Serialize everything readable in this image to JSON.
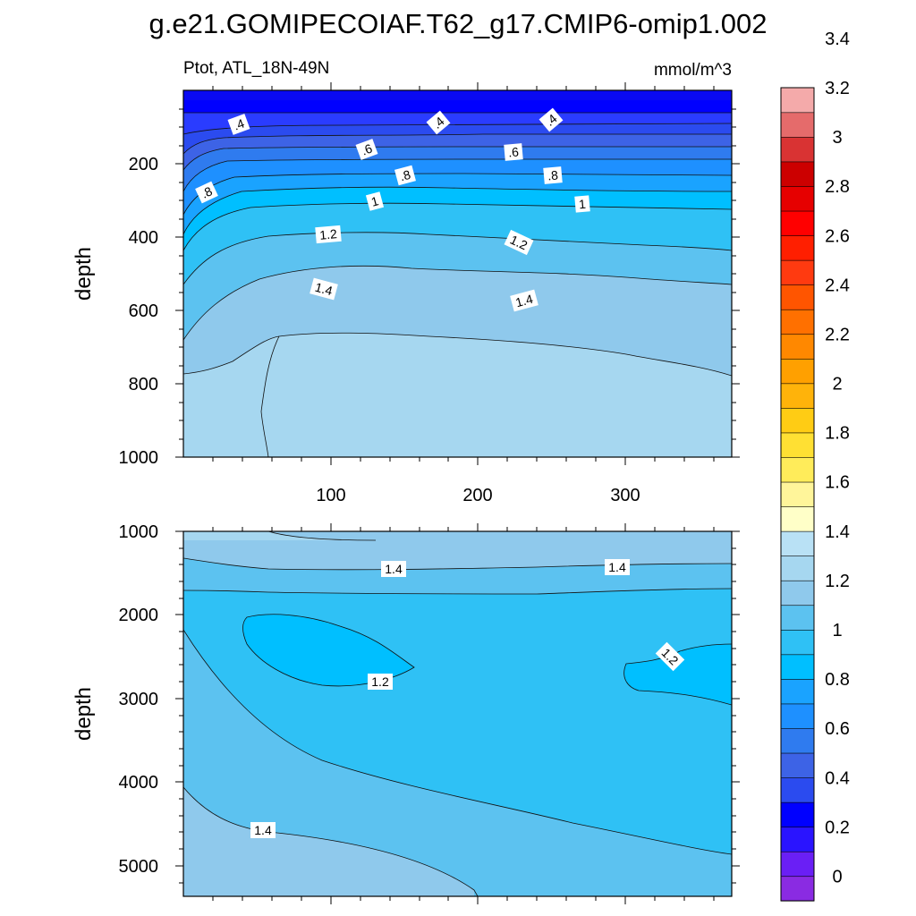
{
  "chart_data": [
    {
      "type": "heatmap",
      "title": "g.e21.GOMIPECOIAF.T62_g17.CMIP6-omip1.002",
      "left_label": "Ptot, ATL_18N-49N",
      "right_label": "mmol/m^3",
      "ylabel": "depth",
      "xlim": [
        0,
        372
      ],
      "ylim": [
        1000,
        0
      ],
      "x_ticks": [
        "100",
        "200",
        "300"
      ],
      "y_ticks": [
        "200",
        "400",
        "600",
        "800",
        "1000"
      ],
      "contour_labels": [
        ".4",
        ".4",
        ".4",
        ".6",
        ".6",
        ".8",
        ".8",
        ".8",
        "1",
        "1",
        "1.2",
        "1.2",
        "1.4",
        "1.4"
      ],
      "grid": false
    },
    {
      "type": "heatmap",
      "ylabel": "depth",
      "xlim": [
        0,
        372
      ],
      "ylim": [
        5400,
        1000
      ],
      "y_ticks": [
        "1000",
        "2000",
        "3000",
        "4000",
        "5000"
      ],
      "contour_labels": [
        "1.4",
        "1.4",
        "1.2",
        "1.2",
        "1.4"
      ],
      "grid": false
    }
  ],
  "colorbar": {
    "labels": [
      "0",
      "0.2",
      "0.4",
      "0.6",
      "0.8",
      "1",
      "1.2",
      "1.4",
      "1.6",
      "1.8",
      "2",
      "2.2",
      "2.4",
      "2.6",
      "2.8",
      "3",
      "3.2",
      "3.4"
    ],
    "colors": [
      "#8a2be2",
      "#6a1ff5",
      "#2a14ff",
      "#0000ff",
      "#2b4bef",
      "#3d63e6",
      "#2f7bef",
      "#1e90ff",
      "#1aa3ff",
      "#00bfff",
      "#2fc1f5",
      "#5cc2f0",
      "#8fc9ec",
      "#a6d7f0",
      "#b9e1f5",
      "#ffffc8",
      "#fff59a",
      "#ffec5a",
      "#ffe033",
      "#ffcc14",
      "#ffb30a",
      "#ffa000",
      "#ff8800",
      "#ff7000",
      "#ff5500",
      "#ff3a10",
      "#ff1f00",
      "#ff0000",
      "#e60000",
      "#cc0000",
      "#d93333",
      "#e56b6b",
      "#f4aaaa"
    ]
  }
}
